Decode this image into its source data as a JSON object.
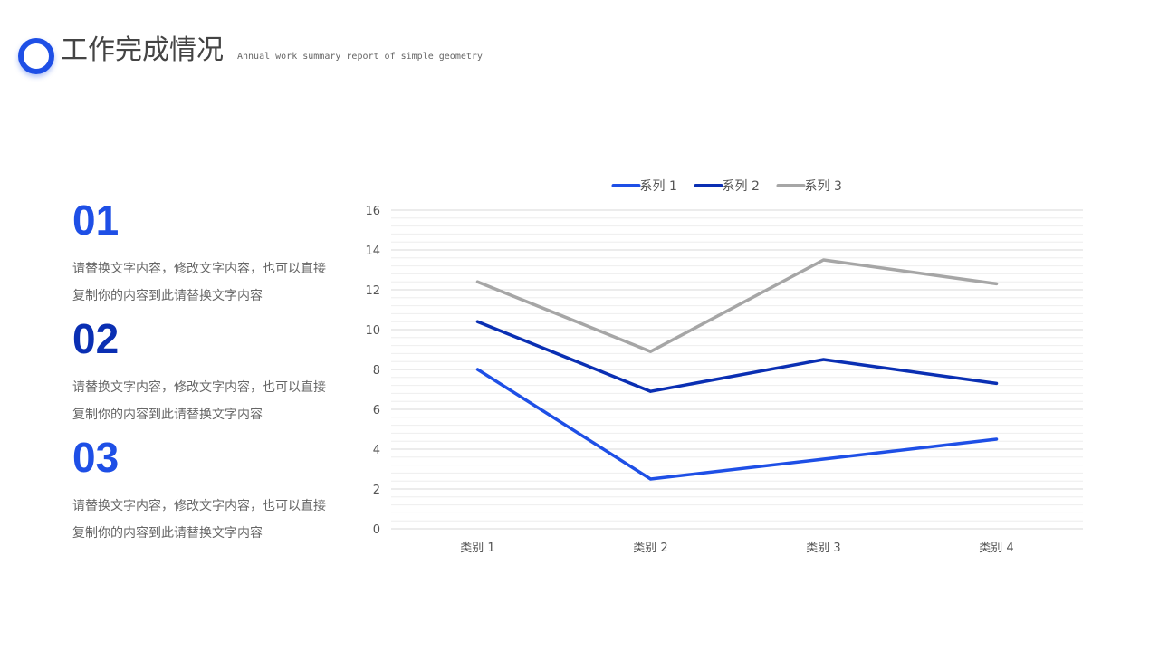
{
  "header": {
    "title": "工作完成情况",
    "subtitle": "Annual work summary report of simple geometry",
    "accent_color": "#1e4fe6"
  },
  "items": [
    {
      "number": "01",
      "text": "请替换文字内容，修改文字内容，也可以直接复制你的内容到此请替换文字内容",
      "color": "#1e4fe6"
    },
    {
      "number": "02",
      "text": "请替换文字内容，修改文字内容，也可以直接复制你的内容到此请替换文字内容",
      "color": "#0a2fb3"
    },
    {
      "number": "03",
      "text": "请替换文字内容，修改文字内容，也可以直接复制你的内容到此请替换文字内容",
      "color": "#1e4fe6"
    }
  ],
  "chart_data": {
    "type": "line",
    "categories": [
      "类别 1",
      "类别 2",
      "类别 3",
      "类别 4"
    ],
    "series": [
      {
        "name": "系列 1",
        "values": [
          8.0,
          2.5,
          3.5,
          4.5
        ],
        "color": "#1e4fe6"
      },
      {
        "name": "系列 2",
        "values": [
          10.4,
          6.9,
          8.5,
          7.3
        ],
        "color": "#0a2fb3"
      },
      {
        "name": "系列 3",
        "values": [
          12.4,
          8.9,
          13.5,
          12.3
        ],
        "color": "#a6a6a6"
      }
    ],
    "ylim": [
      0,
      16
    ],
    "yticks": [
      0,
      2,
      4,
      6,
      8,
      10,
      12,
      14,
      16
    ],
    "grid": true,
    "legend": "top-center",
    "title": "",
    "xlabel": "",
    "ylabel": ""
  }
}
